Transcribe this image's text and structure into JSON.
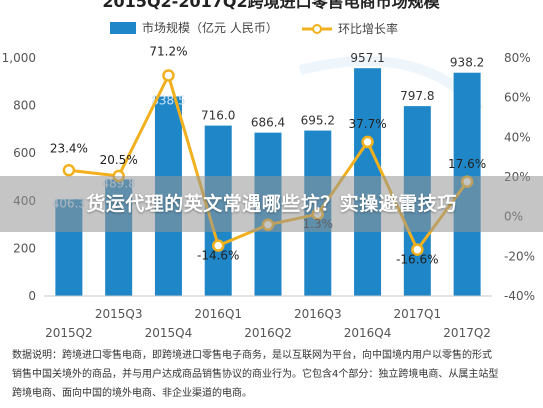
{
  "chart_data": {
    "type": "bar+line",
    "title": "2015Q2-2017Q2跨境进口零售电商市场规模",
    "categories": [
      "2015Q2",
      "2015Q3",
      "2015Q4",
      "2016Q1",
      "2016Q2",
      "2016Q3",
      "2016Q4",
      "2017Q1",
      "2017Q2"
    ],
    "x_tick_labels_top": [
      "2015Q3",
      "2016Q1",
      "2016Q3",
      "2017Q1"
    ],
    "x_tick_labels_bottom": [
      "2015Q2",
      "2015Q4",
      "2016Q2",
      "2016Q4",
      "2017Q2"
    ],
    "series": [
      {
        "name": "市场规模（亿元 人民币）",
        "type": "bar",
        "axis": "left",
        "values": [
          406.3,
          489.8,
          838.5,
          716.0,
          686.4,
          695.2,
          957.1,
          797.8,
          938.2
        ],
        "labels": [
          "406.3",
          "489.8",
          "838.5",
          "716.0",
          "686.4",
          "695.2",
          "957.1",
          "797.8",
          "938.2"
        ]
      },
      {
        "name": "环比增长率",
        "type": "line",
        "axis": "right",
        "values": [
          23.4,
          20.5,
          71.2,
          -14.6,
          -4.1,
          1.3,
          37.7,
          -16.6,
          17.6
        ],
        "labels": [
          "23.4%",
          "20.5%",
          "71.2%",
          "-14.6%",
          "",
          "1.3%",
          "37.7%",
          "-16.6%",
          "17.6%"
        ]
      }
    ],
    "y_left": {
      "min": 0,
      "max": 1000,
      "ticks": [
        "0",
        "200",
        "400",
        "600",
        "800",
        "1,000"
      ]
    },
    "y_right": {
      "min": -40,
      "max": 80,
      "ticks": [
        "-40%",
        "-20%",
        "0%",
        "20%",
        "40%",
        "60%",
        "80%"
      ]
    },
    "legend_position": "top",
    "colors": {
      "bar": "#1f87c8",
      "line": "#f2b01e",
      "marker_fill": "#ffffff",
      "banner": "#969696"
    }
  },
  "banner": {
    "text": "货运代理的英文常遇哪些坑？实操避雷技巧"
  },
  "note": {
    "lines": [
      "数据说明：跨境进口零售电商，即跨境进口零售电子商务，是以互联网为平台，向中国境内用户以零售的形式",
      "销售中国关境外的商品，并与用户达成商品销售协议的商业行为。它包含4个部分：独立跨境电商、从属主站型",
      "跨境电商、面向中国的境外电商、非企业渠道的电商。"
    ]
  }
}
